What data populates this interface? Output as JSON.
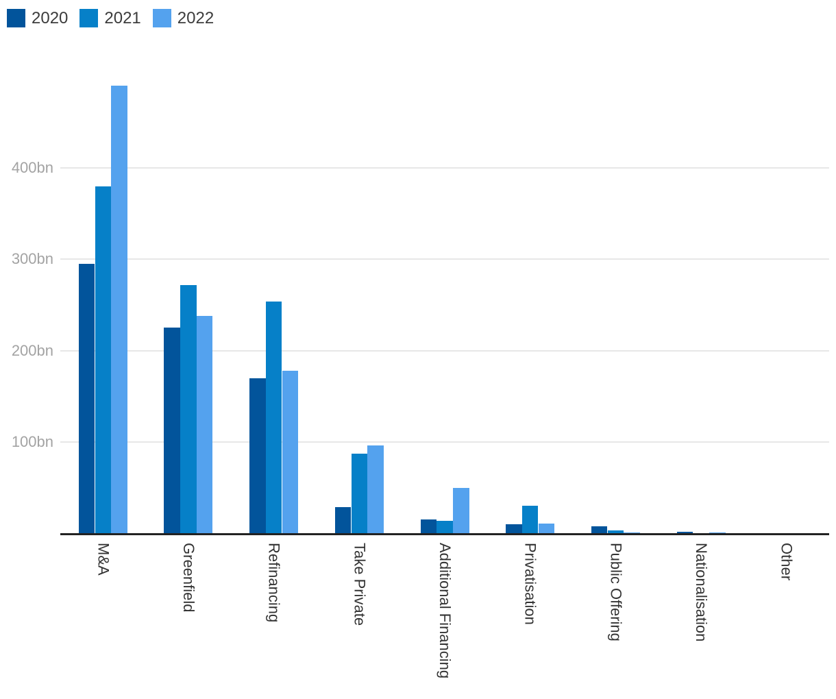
{
  "chart_data": {
    "type": "bar",
    "title": "",
    "xlabel": "",
    "ylabel": "",
    "categories": [
      "M&A",
      "Greenfield",
      "Refinancing",
      "Take Private",
      "Additional Financing",
      "Privatisation",
      "Public Offering",
      "Nationalisation",
      "Other"
    ],
    "series": [
      {
        "name": "2020",
        "color": "#02549b",
        "values": [
          295,
          225,
          170,
          29,
          15,
          10,
          8,
          2,
          0
        ]
      },
      {
        "name": "2021",
        "color": "#0680c8",
        "values": [
          380,
          272,
          254,
          87,
          14,
          30,
          3,
          0,
          0
        ]
      },
      {
        "name": "2022",
        "color": "#54a2ee",
        "values": [
          490,
          238,
          178,
          96,
          50,
          11,
          1,
          1,
          0
        ]
      }
    ],
    "yticks": [
      100,
      200,
      300,
      400
    ],
    "ytick_labels": [
      "100bn",
      "200bn",
      "300bn",
      "400bn"
    ],
    "ylim": [
      0,
      505
    ],
    "grid": true,
    "legend_position": "top-left"
  },
  "colors": {
    "background": "#ffffff",
    "gridline": "#e7e7e7",
    "axis_line": "#222222",
    "ytick_label": "#a3a3a3",
    "category_label": "#333333",
    "legend_label": "#3c3c3c"
  }
}
